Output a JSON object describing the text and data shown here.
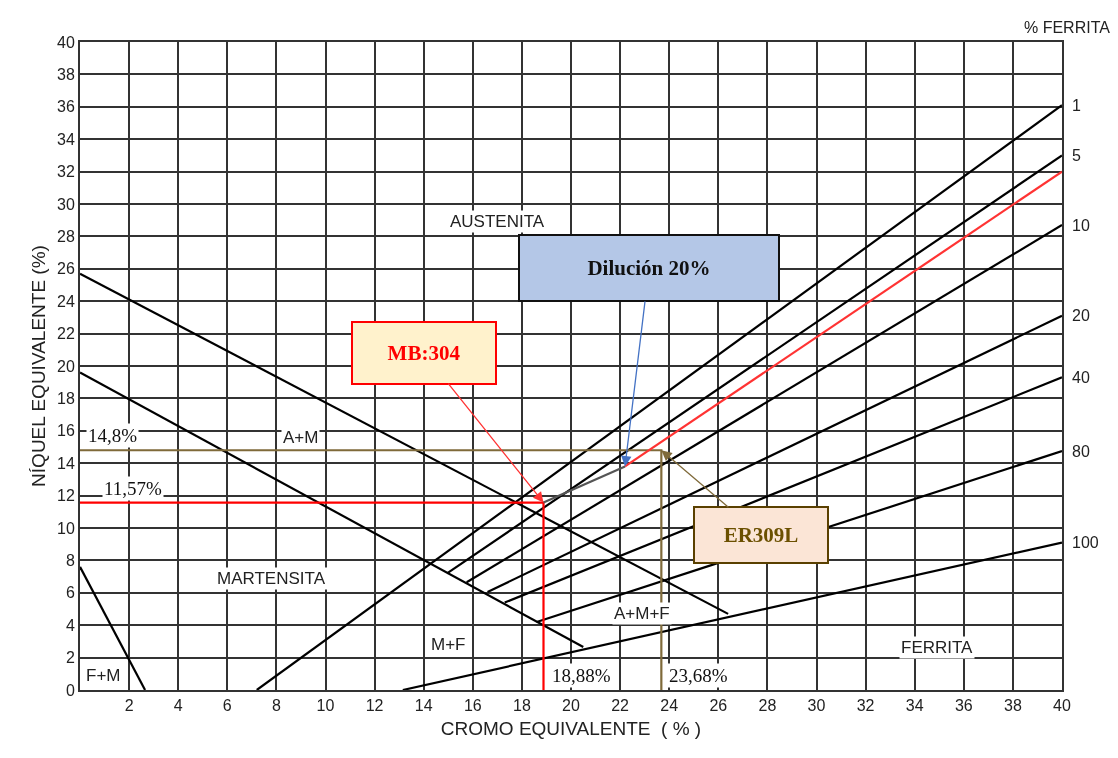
{
  "chart_data": {
    "type": "line",
    "xlabel": "CROMO EQUIVALENTE  ( % )",
    "ylabel": "NÍQUEL EQUIVALENTE (%)",
    "xlim": [
      0,
      40
    ],
    "ylim": [
      0,
      40
    ],
    "xticks": [
      {
        "value": 0,
        "label": null
      },
      2,
      4,
      6,
      8,
      10,
      12,
      14,
      16,
      18,
      20,
      22,
      24,
      26,
      28,
      30,
      32,
      34,
      36,
      38,
      40
    ],
    "yticks": [
      0,
      2,
      4,
      6,
      8,
      10,
      12,
      14,
      16,
      18,
      20,
      22,
      24,
      26,
      28,
      30,
      32,
      34,
      36,
      38,
      40
    ],
    "grid": true,
    "legend": false,
    "marker": "none",
    "line_style": "solid",
    "series": [
      {
        "color": "#000000",
        "x": [
          0,
          26.4
        ],
        "values": [
          25.7,
          4.7
        ]
      },
      {
        "color": "#000000",
        "x": [
          0,
          20.5
        ],
        "values": [
          19.6,
          2.65
        ]
      },
      {
        "color": "#000000",
        "x": [
          0,
          2.65
        ],
        "values": [
          7.6,
          0
        ]
      },
      {
        "name": "1",
        "color": "#000000",
        "x": [
          7.2,
          40
        ],
        "values": [
          0,
          36.1
        ]
      },
      {
        "name": "5",
        "color": "#000000",
        "x": [
          14.95,
          40
        ],
        "values": [
          7.2,
          33.0
        ]
      },
      {
        "name": "10",
        "color": "#000000",
        "x": [
          15.75,
          40
        ],
        "values": [
          6.65,
          28.7
        ]
      },
      {
        "name": "20",
        "color": "#000000",
        "x": [
          16.6,
          40
        ],
        "values": [
          6.05,
          23.1
        ]
      },
      {
        "name": "40",
        "color": "#000000",
        "x": [
          17.3,
          40
        ],
        "values": [
          5.4,
          19.3
        ]
      },
      {
        "name": "80",
        "color": "#000000",
        "x": [
          18.6,
          40
        ],
        "values": [
          4.2,
          14.75
        ]
      },
      {
        "name": "100",
        "color": "#000000",
        "x": [
          13.15,
          40
        ],
        "values": [
          0,
          9.1
        ]
      },
      {
        "color": "#ff0000",
        "x": [
          0,
          18.88,
          18.88
        ],
        "values": [
          11.57,
          11.57,
          0
        ]
      },
      {
        "color": "#7f6a3a",
        "x": [
          0,
          23.68,
          23.68
        ],
        "values": [
          14.8,
          14.8,
          0
        ]
      },
      {
        "color": "#555555",
        "x": [
          18.88,
          22.2
        ],
        "values": [
          11.57,
          13.8
        ]
      },
      {
        "color": "#ff3333",
        "x": [
          22.2,
          40
        ],
        "values": [
          13.8,
          32.0
        ]
      }
    ],
    "annotations": [
      "AUSTENITA",
      "A+M",
      "MARTENSITA",
      "M+F",
      "F+M",
      "A+M+F",
      "FERRITA",
      {
        "text": "14,8%",
        "x": 0,
        "y": 14.8
      },
      {
        "text": "11,57%",
        "x": 0,
        "y": 11.57
      },
      {
        "text": "18,88%",
        "x": 18.88,
        "y": 0
      },
      {
        "text": "23,68%",
        "x": 23.68,
        "y": 0
      },
      {
        "text": "MB:304",
        "x": 18.88,
        "y": 11.57
      },
      {
        "text": "Dilución 20%",
        "x": 22.2,
        "y": 13.8
      },
      {
        "text": "ER309L",
        "x": 23.68,
        "y": 14.8
      },
      "% FERRITA"
    ]
  }
}
